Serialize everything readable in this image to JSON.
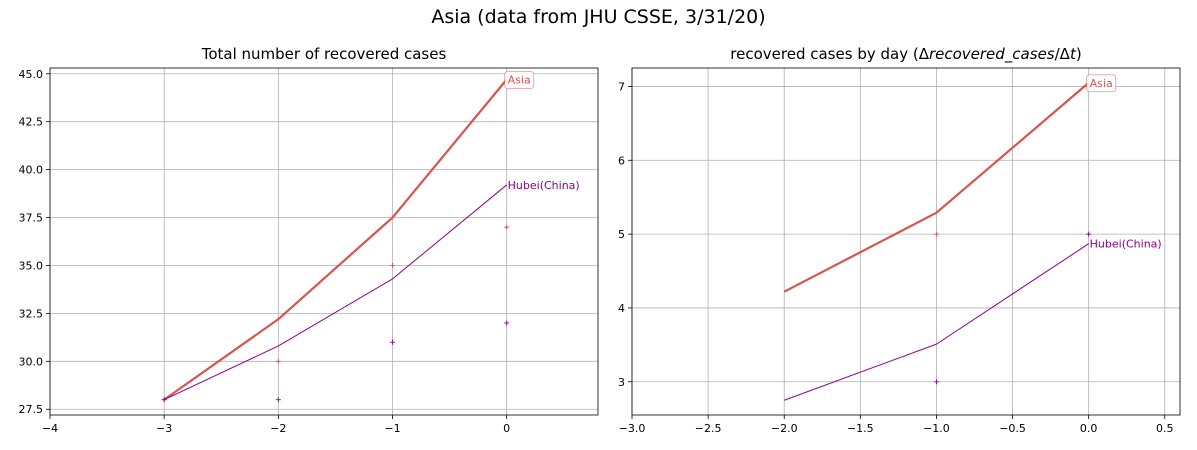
{
  "suptitle": "Asia (data from JHU CSSE, 3/31/20)",
  "colors": {
    "asia": "#d9534f",
    "hubei": "#8b008b",
    "grid": "#b0b0b0"
  },
  "chart_data": [
    {
      "type": "line",
      "title": "Total number of recovered cases",
      "xlim": [
        -4,
        0.8
      ],
      "ylim": [
        27.2,
        45.3
      ],
      "xticks": [
        -4,
        -3,
        -2,
        -1,
        0
      ],
      "xtick_labels": [
        "−4",
        "−3",
        "−2",
        "−1",
        "0"
      ],
      "yticks": [
        27.5,
        30.0,
        32.5,
        35.0,
        37.5,
        40.0,
        42.5,
        45.0
      ],
      "ytick_labels": [
        "27.5",
        "30.0",
        "32.5",
        "35.0",
        "37.5",
        "40.0",
        "42.5",
        "45.0"
      ],
      "grid": true,
      "series": [
        {
          "name": "Asia",
          "key": "asia",
          "width": 2.2,
          "label_box": true,
          "x": [
            -3,
            -2,
            -1,
            0
          ],
          "y": [
            28.0,
            32.2,
            37.5,
            44.7
          ],
          "points_x": [
            -3,
            -2,
            -1,
            0
          ],
          "points_y": [
            28.0,
            30.0,
            35.0,
            37.0
          ]
        },
        {
          "name": "Hubei(China)",
          "key": "hubei",
          "width": 1.0,
          "label_box": false,
          "x": [
            -3,
            -2,
            -1,
            0
          ],
          "y": [
            28.0,
            30.8,
            34.3,
            39.2
          ],
          "points_x": [
            -3,
            -2,
            -1,
            0
          ],
          "points_y": [
            28.0,
            28.0,
            31.0,
            32.0
          ]
        }
      ]
    },
    {
      "type": "line",
      "title": "recovered cases by day (Δrecovered_cases/Δt)",
      "title_parts": {
        "a": "recovered cases by day (",
        "b": "Δ",
        "c": "recovered_cases",
        "d": "/Δ",
        "e": "t",
        "f": ")"
      },
      "xlim": [
        -3.0,
        0.6
      ],
      "ylim": [
        2.55,
        7.25
      ],
      "xticks": [
        -3.0,
        -2.5,
        -2.0,
        -1.5,
        -1.0,
        -0.5,
        0.0,
        0.5
      ],
      "xtick_labels": [
        "−3.0",
        "−2.5",
        "−2.0",
        "−1.5",
        "−1.0",
        "−0.5",
        "0.0",
        "0.5"
      ],
      "yticks": [
        3,
        4,
        5,
        6,
        7
      ],
      "ytick_labels": [
        "3",
        "4",
        "5",
        "6",
        "7"
      ],
      "grid": true,
      "series": [
        {
          "name": "Asia",
          "key": "asia",
          "width": 2.2,
          "label_box": true,
          "x": [
            -2,
            -1,
            0
          ],
          "y": [
            4.22,
            5.29,
            7.05
          ],
          "points_x": [
            -1,
            0
          ],
          "points_y": [
            5.0,
            7.0
          ]
        },
        {
          "name": "Hubei(China)",
          "key": "hubei",
          "width": 1.0,
          "label_box": false,
          "x": [
            -2,
            -1,
            0
          ],
          "y": [
            2.75,
            3.51,
            4.87
          ],
          "points_x": [
            -1,
            0
          ],
          "points_y": [
            3.0,
            5.0
          ]
        }
      ]
    }
  ]
}
